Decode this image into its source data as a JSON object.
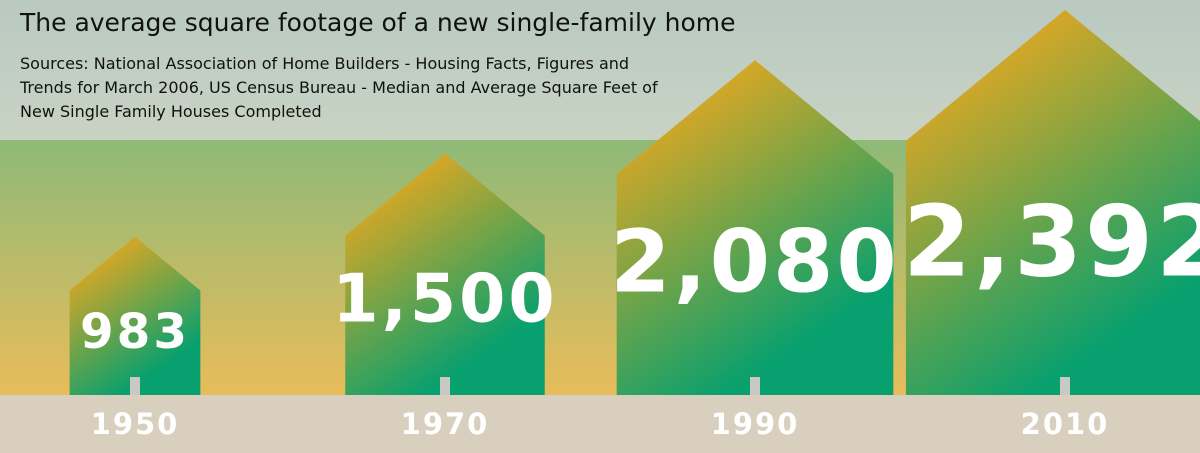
{
  "chart_data": {
    "type": "house",
    "title": "The average square footage of a new single-family home",
    "subtitle": "Sources: National Association of Home Builders - Housing Facts, Figures and Trends for March 2006, US Census Bureau - Median and Average Square Feet of New Single Family Houses Completed",
    "categories": [
      "1950",
      "1970",
      "1990",
      "2010"
    ],
    "values": [
      983,
      1500,
      2080,
      2392
    ],
    "value_labels": [
      "983",
      "1,500",
      "2,080",
      "2,392"
    ],
    "colors": [
      "#eca81e",
      "#08a06e"
    ]
  }
}
